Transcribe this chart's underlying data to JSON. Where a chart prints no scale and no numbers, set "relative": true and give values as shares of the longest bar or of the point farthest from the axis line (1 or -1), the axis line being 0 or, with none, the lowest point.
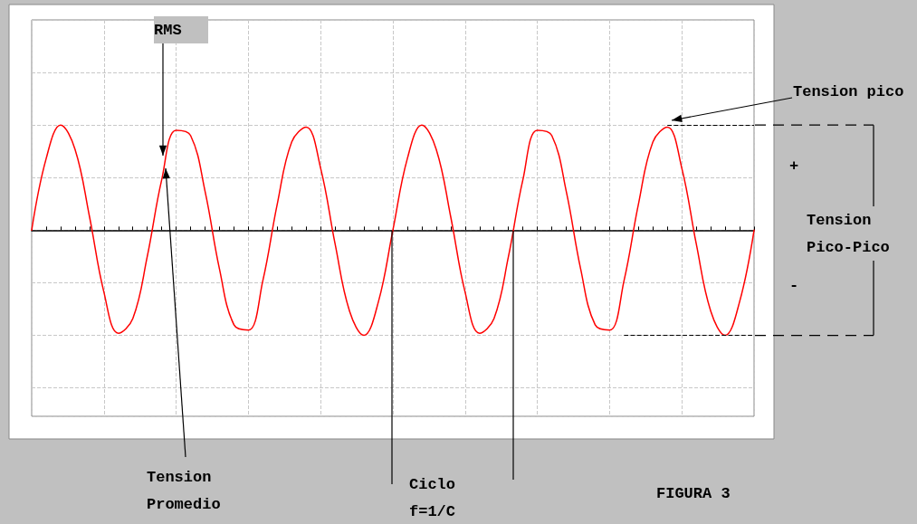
{
  "chart_data": {
    "type": "line",
    "relative": true,
    "categories": [
      null,
      null,
      null,
      null,
      null,
      null,
      null,
      null,
      null,
      null,
      null,
      null,
      null,
      null,
      null,
      null,
      null,
      null,
      null,
      null,
      null,
      null,
      null,
      null,
      null,
      null,
      null,
      null,
      null,
      null,
      null,
      null,
      null,
      null,
      null,
      null,
      null,
      null,
      null,
      null,
      null,
      null,
      null,
      null,
      null,
      null,
      null,
      null,
      null,
      null,
      null
    ],
    "series": [
      {
        "color": "#ff0000",
        "values": [
          0,
          0.68,
          1,
          0.77,
          0.13,
          -0.59,
          -0.98,
          -0.84,
          -0.25,
          0.48,
          0.95,
          0.9,
          0.37,
          -0.37,
          -0.9,
          -0.95,
          -0.48,
          0.25,
          0.84,
          0.98,
          0.59,
          -0.13,
          -0.77,
          -1,
          -0.68,
          0,
          0.68,
          1,
          0.77,
          0.13,
          -0.59,
          -0.98,
          -0.84,
          -0.25,
          0.48,
          0.95,
          0.9,
          0.37,
          -0.37,
          -0.9,
          -0.95,
          -0.48,
          0.25,
          0.84,
          0.98,
          0.59,
          -0.13,
          -0.77,
          -1,
          -0.68,
          0
        ]
      }
    ],
    "annotations": [
      "RMS",
      "Tension pico",
      "+",
      "Tension Pico-Pico",
      "-",
      "Tension Promedio",
      "Ciclo f=1/C",
      "FIGURA 3"
    ],
    "ref_lines": [
      {
        "axis": "y",
        "value": 1,
        "color": "#000000",
        "line_style": "dashed"
      },
      {
        "axis": "y",
        "value": -1,
        "color": "#000000",
        "line_style": "dashed"
      }
    ],
    "grid": true,
    "marker": "none",
    "line_style": "solid"
  }
}
